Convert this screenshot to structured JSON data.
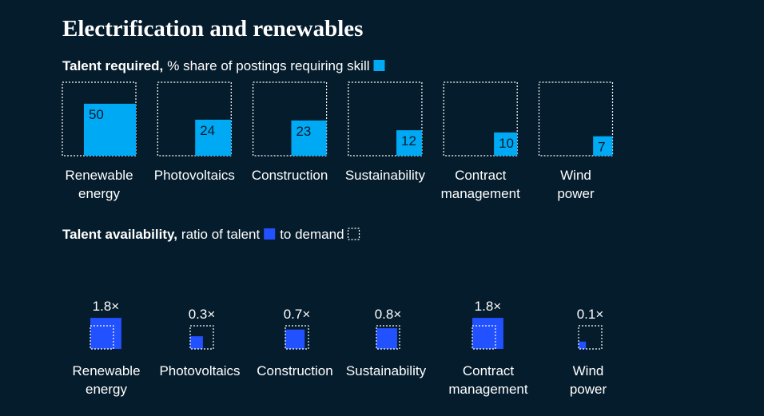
{
  "title": "Electrification and renewables",
  "chart_data": [
    {
      "type": "area-square",
      "title": "Talent required,",
      "subtitle": "% share of postings requiring skill",
      "categories": [
        "Renewable\nenergy",
        "Photovoltaics",
        "Construction",
        "Sustainability",
        "Contract\nmanagement",
        "Wind\npower"
      ],
      "values": [
        50,
        24,
        23,
        12,
        10,
        7
      ],
      "box_value": 100,
      "color": "#00a9f4"
    },
    {
      "type": "ratio-square",
      "title": "Talent availability,",
      "subtitle": "ratio of talent",
      "subtitle2": "to demand",
      "categories": [
        "Renewable\nenergy",
        "Photovoltaics",
        "Construction",
        "Sustainability",
        "Contract\nmanagement",
        "Wind\npower"
      ],
      "values": [
        1.8,
        0.3,
        0.7,
        0.8,
        1.8,
        0.1
      ],
      "value_labels": [
        "1.8×",
        "0.3×",
        "0.7×",
        "0.8×",
        "1.8×",
        "0.1×"
      ],
      "box_value": 1,
      "color": "#2251ff"
    }
  ]
}
